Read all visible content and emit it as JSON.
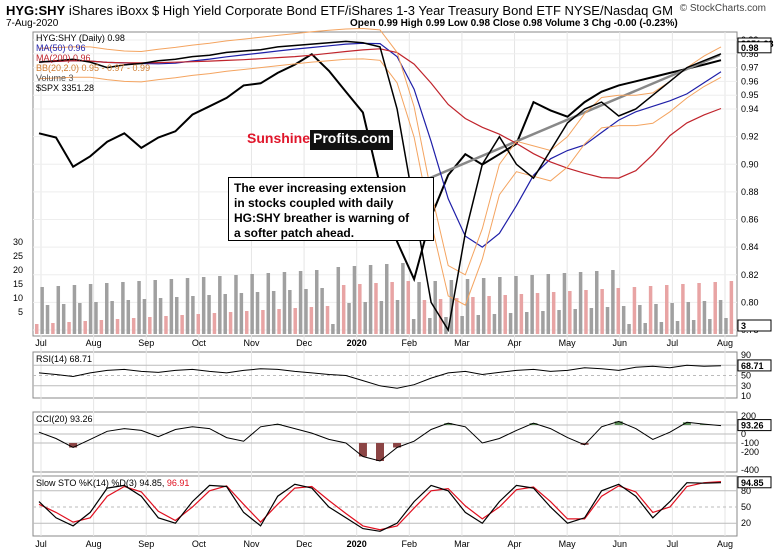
{
  "header": {
    "symbol": "HYG:SHY",
    "title": "iShares iBoxx $ High Yield Corporate Bond ETF/iShares 1-3 Year Treasury Bond ETF  NYSE/Nasdaq GM",
    "date": "7-Aug-2020",
    "ohlc_text": "Open 0.99  High 0.99  Low 0.98  Close 0.98  Volume 3  Chg -0.00 (-0.23%)",
    "watermark": "© StockCharts.com"
  },
  "legend": {
    "main": "HYG:SHY (Daily) 0.98",
    "ma50": "MA(50) 0.96",
    "ma200": "MA(200) 0.96",
    "bb": "BB(20,2.0) 0.95 - 0.97 - 0.99",
    "volume": "Volume 3",
    "spx": "$SPX 3351.28"
  },
  "annotation": {
    "lines": [
      "The ever increasing extension",
      "in stocks coupled with daily",
      "HG:SHY breather is warning of",
      "a softer patch ahead."
    ]
  },
  "logo": {
    "part1": "Sunshine",
    "part2": "Profits.com"
  },
  "colors": {
    "price": "#000000",
    "ma50": "#1f1fa8",
    "ma200": "#c0242c",
    "bb": "#f4a460",
    "spx": "#000000",
    "vol_up": "#a0a0a0",
    "vol_down": "#e8a4a4",
    "rsi": "#000000",
    "cci_pos": "#5a8a55",
    "cci_neg": "#8b4444",
    "sto_k": "#000000",
    "sto_d": "#e01020"
  },
  "chart_data": {
    "type": "line",
    "x_labels": [
      "Jul",
      "Aug",
      "Sep",
      "Oct",
      "Nov",
      "Dec",
      "2020",
      "Feb",
      "Mar",
      "Apr",
      "May",
      "Jun",
      "Jul",
      "Aug"
    ],
    "price": {
      "axis": [
        "0.99",
        "0.98",
        "0.97",
        "0.96",
        "0.95",
        "0.94",
        "0.92",
        "0.90",
        "0.88",
        "0.86",
        "0.84",
        "0.82",
        "0.80",
        "0.78"
      ],
      "spx_last": "3351.28",
      "values": [
        0.974,
        0.975,
        0.976,
        0.974,
        0.97,
        0.972,
        0.973,
        0.975,
        0.976,
        0.978,
        0.979,
        0.981,
        0.982,
        0.983,
        0.985,
        0.986,
        0.987,
        0.988,
        0.989,
        0.988,
        0.985,
        0.94,
        0.87,
        0.8,
        0.78,
        0.85,
        0.9,
        0.92,
        0.9,
        0.89,
        0.91,
        0.93,
        0.94,
        0.945,
        0.935,
        0.94,
        0.95,
        0.96,
        0.97,
        0.975,
        0.98
      ]
    },
    "spx_values": [
      3000,
      2980,
      2840,
      2890,
      2960,
      3000,
      2930,
      2980,
      3010,
      3090,
      3130,
      3170,
      3230,
      3240,
      3290,
      3330,
      3380,
      3300,
      3200,
      3100,
      2750,
      2480,
      2300,
      2600,
      2800,
      2900,
      2850,
      2900,
      2950,
      3150,
      3110,
      3080,
      3150,
      3200,
      3230,
      3250,
      3270,
      3290,
      3310,
      3330,
      3351
    ],
    "volume": {
      "axis": [
        "30",
        "25",
        "20",
        "15",
        "10",
        "5"
      ],
      "last": "3"
    },
    "rsi": {
      "label": "RSI(14) 68.71",
      "axis": [
        "90",
        "70",
        "50",
        "30",
        "10"
      ],
      "last": "68.71",
      "values": [
        55,
        52,
        48,
        55,
        60,
        62,
        58,
        56,
        60,
        62,
        58,
        55,
        60,
        63,
        62,
        58,
        55,
        52,
        50,
        40,
        30,
        25,
        32,
        45,
        55,
        58,
        52,
        56,
        60,
        62,
        58,
        60,
        65,
        63,
        60,
        66,
        68,
        65,
        70,
        68,
        69
      ]
    },
    "cci": {
      "label": "CCI(20) 93.26",
      "axis": [
        "200",
        "100",
        "0",
        "-100",
        "-200",
        "-400"
      ],
      "last": "93.26",
      "values": [
        20,
        -50,
        -150,
        -60,
        30,
        60,
        40,
        -30,
        50,
        80,
        60,
        -40,
        -80,
        80,
        110,
        60,
        10,
        -60,
        -100,
        -250,
        -300,
        -150,
        -80,
        50,
        120,
        80,
        -100,
        -50,
        40,
        120,
        60,
        -40,
        -120,
        80,
        140,
        60,
        -60,
        20,
        130,
        110,
        93
      ]
    },
    "sto": {
      "label": "Slow STO %K(14) %D(3) 94.85,",
      "d_label": "96.91",
      "axis": [
        "80",
        "50",
        "20"
      ],
      "last": "94.85",
      "k": [
        60,
        30,
        15,
        40,
        85,
        90,
        70,
        30,
        20,
        60,
        90,
        88,
        40,
        15,
        70,
        92,
        85,
        50,
        30,
        10,
        5,
        20,
        60,
        90,
        80,
        40,
        20,
        60,
        90,
        85,
        50,
        20,
        30,
        80,
        92,
        70,
        30,
        60,
        95,
        94,
        95
      ],
      "d": [
        55,
        40,
        22,
        30,
        70,
        88,
        78,
        42,
        25,
        50,
        80,
        89,
        55,
        22,
        55,
        85,
        88,
        62,
        38,
        15,
        8,
        15,
        48,
        80,
        84,
        52,
        28,
        50,
        82,
        87,
        60,
        28,
        28,
        70,
        89,
        78,
        40,
        50,
        88,
        95,
        97
      ]
    }
  }
}
